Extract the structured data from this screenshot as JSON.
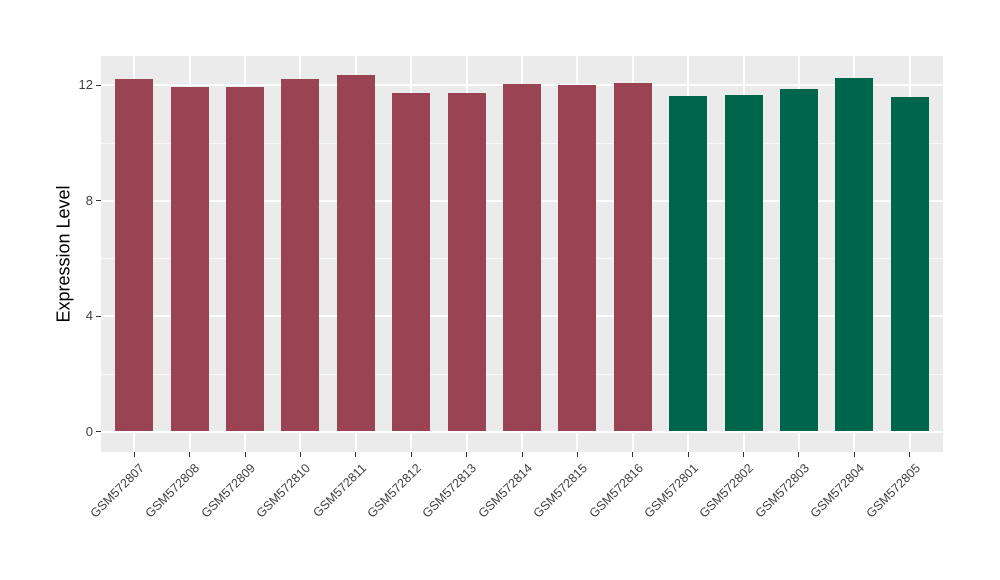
{
  "figure": {
    "background": "#ffffff",
    "panel_background": "#ebebeb",
    "gridline_color": "#ffffff",
    "axis_text_color": "#404040",
    "axis_title_color": "#000000"
  },
  "chart_data": {
    "type": "bar",
    "title": "",
    "xlabel": "",
    "ylabel": "Expression Level",
    "categories": [
      "GSM572807",
      "GSM572808",
      "GSM572809",
      "GSM572810",
      "GSM572811",
      "GSM572812",
      "GSM572813",
      "GSM572814",
      "GSM572815",
      "GSM572816",
      "GSM572801",
      "GSM572802",
      "GSM572803",
      "GSM572804",
      "GSM572805"
    ],
    "values": [
      12.22,
      11.92,
      11.93,
      12.22,
      12.34,
      11.71,
      11.73,
      12.03,
      12.01,
      12.07,
      11.63,
      11.65,
      11.86,
      12.25,
      11.58
    ],
    "bar_colors": [
      "#9a4352",
      "#9a4352",
      "#9a4352",
      "#9a4352",
      "#9a4352",
      "#9a4352",
      "#9a4352",
      "#9a4352",
      "#9a4352",
      "#9a4352",
      "#00664b",
      "#00664b",
      "#00664b",
      "#00664b",
      "#00664b"
    ],
    "color_groups": {
      "maroon": "#9a4352",
      "green": "#00664b"
    },
    "yticks": [
      0,
      4,
      8,
      12
    ],
    "ytick_labels": [
      "0",
      "4",
      "8",
      "12"
    ],
    "yminor": [
      2,
      6,
      10
    ],
    "ylim": [
      0,
      13
    ],
    "grid": "major+minor, white on gray panel",
    "legend": "none"
  }
}
